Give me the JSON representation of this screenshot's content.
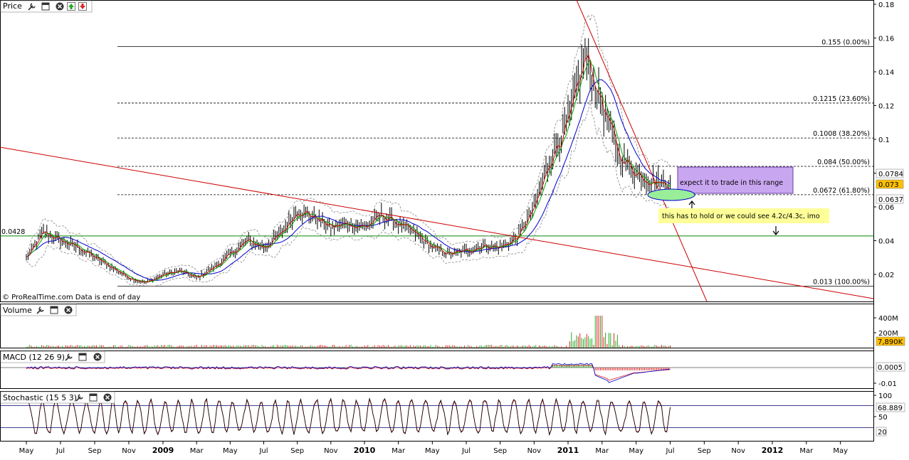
{
  "panels": {
    "price": {
      "title": "Price",
      "credit": "© ProRealTime.com  Data is end of day"
    },
    "volume": {
      "title": "Volume"
    },
    "macd": {
      "title": "MACD (12 26 9)"
    },
    "stochastic": {
      "title": "Stochastic (15 5 3)"
    }
  },
  "icons": [
    "wrench-icon",
    "window-icon",
    "close-icon",
    "move-up-icon",
    "move-down-icon"
  ],
  "colors": {
    "candle": "#000000",
    "ma_fast": "#cc0000",
    "ma_mid": "#00aa00",
    "ma_slow": "#0000cc",
    "bollinger": "#888888",
    "trendline": "#cc0000",
    "support": "#008800",
    "note_purple": "#c9a6f0",
    "note_yellow": "#ffff99",
    "ellipse": "#99ee99"
  },
  "chart_data": [
    {
      "type": "line",
      "panel": "price",
      "title": "Price",
      "yticks": [
        "0.18",
        "0.16",
        "0.14",
        "0.12",
        "0.1",
        "0.08",
        "0.06",
        "0.04",
        "0.02"
      ],
      "ylim": [
        0.0,
        0.18
      ],
      "price_tags": [
        "0.0784",
        "0.073",
        "0.0637"
      ],
      "series_points": [
        [
          "2008-05",
          0.03
        ],
        [
          "2008-06",
          0.045
        ],
        [
          "2008-07",
          0.04
        ],
        [
          "2008-08",
          0.036
        ],
        [
          "2008-09",
          0.03
        ],
        [
          "2008-10",
          0.024
        ],
        [
          "2008-11",
          0.018
        ],
        [
          "2008-12",
          0.015
        ],
        [
          "2009-01",
          0.02
        ],
        [
          "2009-02",
          0.022
        ],
        [
          "2009-03",
          0.018
        ],
        [
          "2009-04",
          0.024
        ],
        [
          "2009-05",
          0.032
        ],
        [
          "2009-06",
          0.04
        ],
        [
          "2009-07",
          0.036
        ],
        [
          "2009-08",
          0.044
        ],
        [
          "2009-09",
          0.058
        ],
        [
          "2009-10",
          0.054
        ],
        [
          "2009-11",
          0.048
        ],
        [
          "2009-12",
          0.05
        ],
        [
          "2010-01",
          0.048
        ],
        [
          "2010-02",
          0.055
        ],
        [
          "2010-03",
          0.05
        ],
        [
          "2010-04",
          0.044
        ],
        [
          "2010-05",
          0.036
        ],
        [
          "2010-06",
          0.032
        ],
        [
          "2010-07",
          0.034
        ],
        [
          "2010-08",
          0.037
        ],
        [
          "2010-09",
          0.036
        ],
        [
          "2010-10",
          0.042
        ],
        [
          "2010-11",
          0.06
        ],
        [
          "2010-12",
          0.09
        ],
        [
          "2011-01",
          0.11
        ],
        [
          "2011-02",
          0.15
        ],
        [
          "2011-03",
          0.12
        ],
        [
          "2011-04",
          0.09
        ],
        [
          "2011-05",
          0.08
        ],
        [
          "2011-06",
          0.075
        ],
        [
          "2011-07",
          0.073
        ]
      ],
      "fibonacci": [
        {
          "value": 0.155,
          "label": "0.155 (0.00%)"
        },
        {
          "value": 0.1215,
          "label": "0.1215 (23.60%)"
        },
        {
          "value": 0.1008,
          "label": "0.1008 (38.20%)"
        },
        {
          "value": 0.084,
          "label": "0.084 (50.00%)"
        },
        {
          "value": 0.0672,
          "label": "0.0672 (61.80%)"
        },
        {
          "value": 0.013,
          "label": "0.013 (100.00%)"
        }
      ],
      "support_line": {
        "value": 0.0428,
        "label": "0.0428"
      },
      "annotations": [
        {
          "text": "expect it to trade in this range"
        },
        {
          "text": "this has to hold or we could see 4.2c/4.3c, imo"
        }
      ]
    },
    {
      "type": "bar",
      "panel": "volume",
      "yticks": [
        "400M",
        "200M"
      ],
      "last_value": "7,890K"
    },
    {
      "type": "line",
      "panel": "macd",
      "yticks": [
        "-0.01"
      ],
      "last_value": "0.0005"
    },
    {
      "type": "line",
      "panel": "stochastic",
      "yticks": [
        "100",
        "50",
        "20"
      ],
      "last_value": "68.889",
      "levels": [
        80,
        20
      ]
    }
  ],
  "x_axis": {
    "labels": [
      {
        "text": "May",
        "bold": false
      },
      {
        "text": "Jul",
        "bold": false
      },
      {
        "text": "Sep",
        "bold": false
      },
      {
        "text": "Nov",
        "bold": false
      },
      {
        "text": "2009",
        "bold": true
      },
      {
        "text": "Mar",
        "bold": false
      },
      {
        "text": "May",
        "bold": false
      },
      {
        "text": "Jul",
        "bold": false
      },
      {
        "text": "Sep",
        "bold": false
      },
      {
        "text": "Nov",
        "bold": false
      },
      {
        "text": "2010",
        "bold": true
      },
      {
        "text": "Mar",
        "bold": false
      },
      {
        "text": "May",
        "bold": false
      },
      {
        "text": "Jul",
        "bold": false
      },
      {
        "text": "Sep",
        "bold": false
      },
      {
        "text": "Nov",
        "bold": false
      },
      {
        "text": "2011",
        "bold": true
      },
      {
        "text": "Mar",
        "bold": false
      },
      {
        "text": "May",
        "bold": false
      },
      {
        "text": "Jul",
        "bold": false
      },
      {
        "text": "Sep",
        "bold": false
      },
      {
        "text": "Nov",
        "bold": false
      },
      {
        "text": "2012",
        "bold": true
      },
      {
        "text": "Mar",
        "bold": false
      },
      {
        "text": "May",
        "bold": false
      }
    ]
  }
}
